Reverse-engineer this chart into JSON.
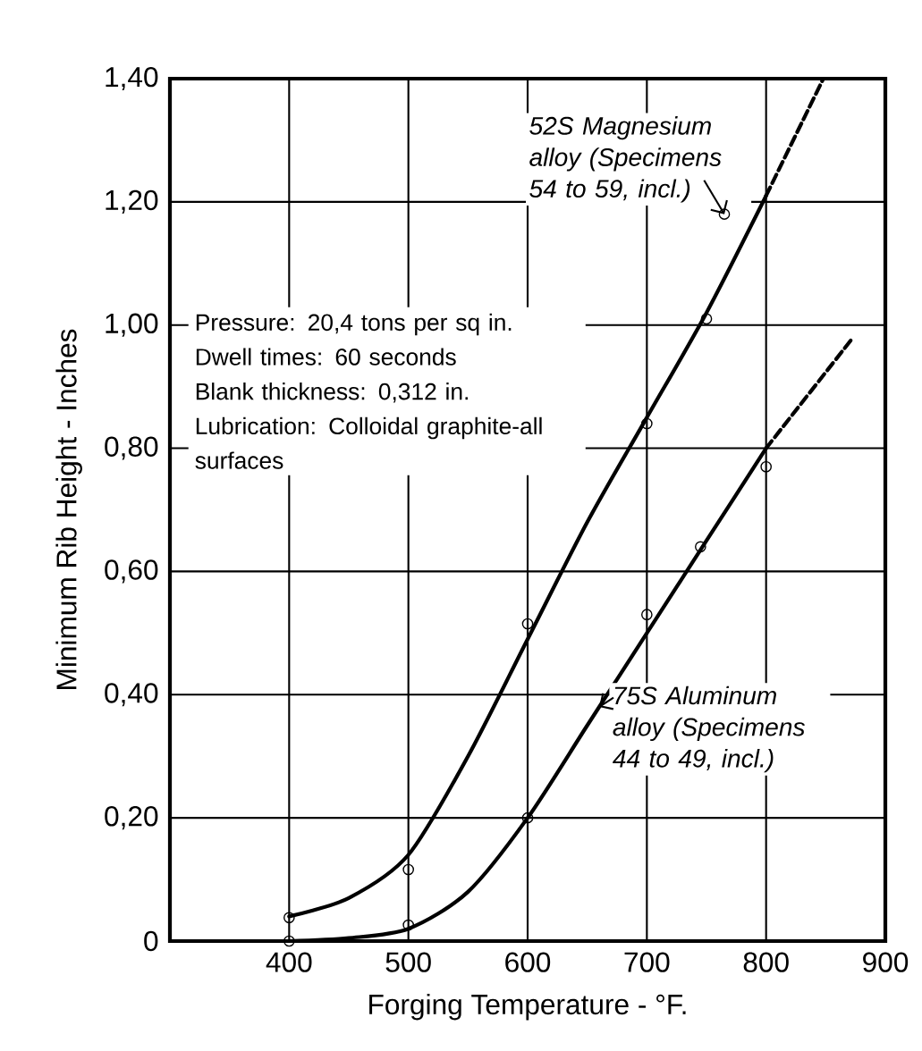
{
  "chart_data": {
    "type": "line",
    "xlabel": "Forging Temperature - °F.",
    "ylabel": "Minimum Rib Height - Inches",
    "xlim": [
      300,
      900
    ],
    "ylim": [
      0,
      1.4
    ],
    "xticks": [
      400,
      500,
      600,
      700,
      800,
      900
    ],
    "yticks": [
      0,
      {
        "value": 0.2,
        "label": "0,20"
      },
      {
        "value": 0.4,
        "label": "0,40"
      },
      {
        "value": 0.6,
        "label": "0,60"
      },
      {
        "value": 0.8,
        "label": "0,80"
      },
      {
        "value": 1.0,
        "label": "1,00"
      },
      {
        "value": 1.2,
        "label": "1,20"
      },
      {
        "value": 1.4,
        "label": "1,40"
      }
    ],
    "grid": true,
    "line_style": "solid",
    "series": [
      {
        "type": "scatter",
        "marker": "circle",
        "color": "#000000",
        "x": [
          400,
          500,
          600,
          700,
          750,
          765
        ],
        "values": [
          0.038,
          0.116,
          0.515,
          0.84,
          1.01,
          1.18
        ]
      },
      {
        "type": "scatter",
        "marker": "circle",
        "color": "#000000",
        "x": [
          400,
          500,
          600,
          700,
          745,
          800
        ],
        "values": [
          0.0,
          0.026,
          0.2,
          0.53,
          0.64,
          0.77
        ]
      },
      {
        "color": "#000000",
        "x": [
          400,
          450,
          500,
          550,
          600,
          650,
          700,
          750,
          800
        ],
        "values": [
          0.04,
          0.07,
          0.14,
          0.3,
          0.49,
          0.68,
          0.85,
          1.02,
          1.21
        ]
      },
      {
        "color": "#000000",
        "line_style": "dashed",
        "x": [
          800,
          848
        ],
        "values": [
          1.21,
          1.4
        ]
      },
      {
        "color": "#000000",
        "x": [
          400,
          450,
          500,
          550,
          600,
          650,
          700,
          750,
          800
        ],
        "values": [
          0.0,
          0.005,
          0.02,
          0.08,
          0.2,
          0.35,
          0.5,
          0.65,
          0.8
        ]
      },
      {
        "color": "#000000",
        "line_style": "dashed",
        "x": [
          800,
          873
        ],
        "values": [
          0.8,
          0.98
        ]
      }
    ],
    "annotations": [
      {
        "text": "*52S Magnesium alloy (Specimens 54 to 59, incl.)*",
        "x": 765,
        "y": 1.18
      },
      {
        "text": "*75S Aluminum alloy (Specimens 44 to 49, incl.)*",
        "x": 660,
        "y": 0.38
      },
      "0",
      "Pressure: 20,4 tons per sq in.",
      "Dwell times: 60 seconds",
      "Blank thickness: 0,312 in.",
      "Lubrication: Colloidal graphite-all surfaces"
    ]
  }
}
